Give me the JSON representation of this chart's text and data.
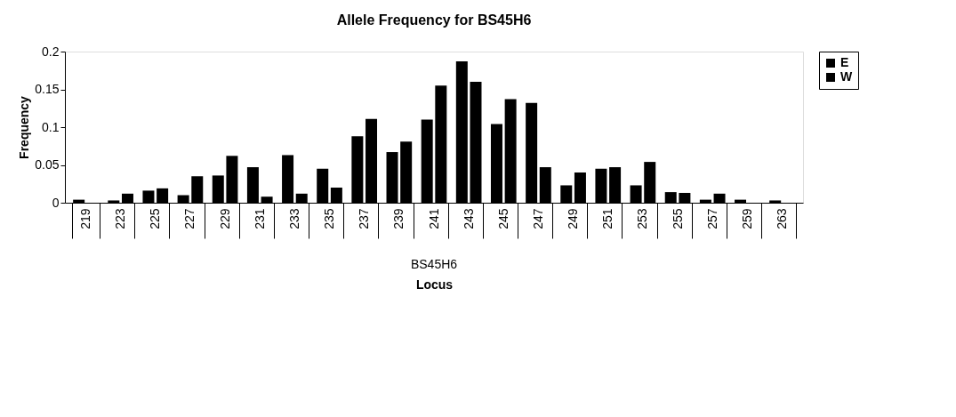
{
  "chart_data": {
    "type": "bar",
    "title": "Allele Frequency for BS45H6",
    "xlabel": "Locus",
    "ylabel": "Frequency",
    "categories": [
      "219",
      "223",
      "225",
      "227",
      "229",
      "231",
      "233",
      "235",
      "237",
      "239",
      "241",
      "243",
      "245",
      "247",
      "249",
      "251",
      "253",
      "255",
      "257",
      "259",
      "263"
    ],
    "series": [
      {
        "name": "E",
        "color": "#000000",
        "values": [
          0.004,
          0.003,
          0.016,
          0.01,
          0.036,
          0.047,
          0.063,
          0.045,
          0.088,
          0.067,
          0.11,
          0.187,
          0.104,
          0.132,
          0.023,
          0.045,
          0.023,
          0.014,
          0.004,
          0.004,
          0.003
        ]
      },
      {
        "name": "W",
        "color": "#000000",
        "values": [
          0,
          0.012,
          0.019,
          0.035,
          0.062,
          0.008,
          0.012,
          0.02,
          0.111,
          0.081,
          0.155,
          0.16,
          0.137,
          0.047,
          0.04,
          0.047,
          0.054,
          0.013,
          0.012,
          0,
          0
        ]
      }
    ],
    "ylim": [
      0,
      0.2
    ],
    "yticks": [
      0,
      0.05,
      0.1,
      0.15,
      0.2
    ],
    "grid": false,
    "legend": "right",
    "annotations": [
      "BS45H6"
    ]
  }
}
